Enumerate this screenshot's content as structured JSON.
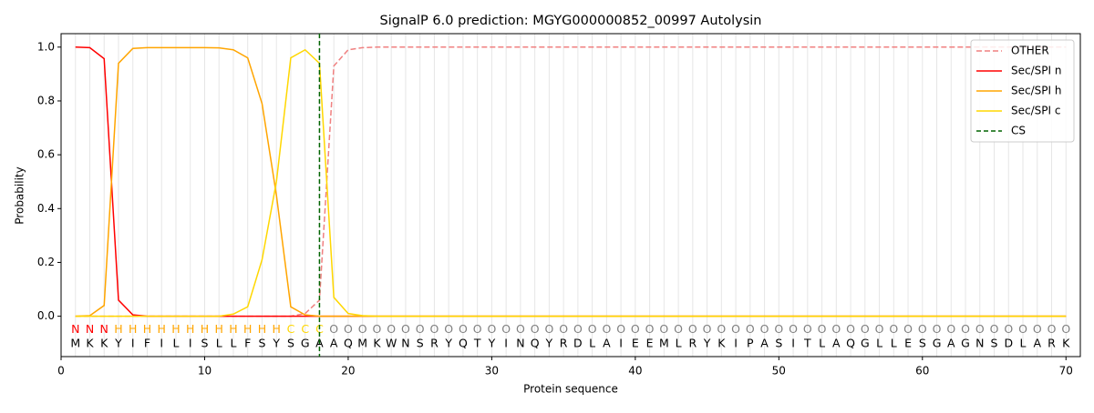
{
  "chart_data": {
    "type": "line",
    "title": "SignalP 6.0 prediction: MGYG000000852_00997 Autolysin",
    "x_label": "Protein sequence",
    "y_label": "Probability",
    "xlim": [
      0,
      71
    ],
    "ylim": [
      -0.15,
      1.05
    ],
    "xticks": [
      0,
      10,
      20,
      30,
      40,
      50,
      60,
      70
    ],
    "yticks": [
      {
        "value": 0,
        "label": "0.0"
      },
      {
        "value": 0.2,
        "label": "0.2"
      },
      {
        "value": 0.4,
        "label": "0.4"
      },
      {
        "value": 0.6,
        "label": "0.6"
      },
      {
        "value": 0.8,
        "label": "0.8"
      },
      {
        "value": 1,
        "label": "1.0"
      }
    ],
    "legend": "upper right",
    "x": [
      1,
      2,
      3,
      4,
      5,
      6,
      7,
      8,
      9,
      10,
      11,
      12,
      13,
      14,
      15,
      16,
      17,
      18,
      19,
      20,
      21,
      22,
      23,
      24,
      25,
      26,
      27,
      28,
      29,
      30,
      31,
      32,
      33,
      34,
      35,
      36,
      37,
      38,
      39,
      40,
      41,
      42,
      43,
      44,
      45,
      46,
      47,
      48,
      49,
      50,
      51,
      52,
      53,
      54,
      55,
      56,
      57,
      58,
      59,
      60,
      61,
      62,
      63,
      64,
      65,
      66,
      67,
      68,
      69,
      70
    ],
    "sequence": [
      "M",
      "K",
      "K",
      "Y",
      "I",
      "F",
      "I",
      "L",
      "I",
      "S",
      "L",
      "L",
      "F",
      "S",
      "Y",
      "S",
      "G",
      "A",
      "A",
      "Q",
      "M",
      "K",
      "W",
      "N",
      "S",
      "R",
      "Y",
      "Q",
      "T",
      "Y",
      "I",
      "N",
      "Q",
      "Y",
      "R",
      "D",
      "L",
      "A",
      "I",
      "E",
      "E",
      "M",
      "L",
      "R",
      "Y",
      "K",
      "I",
      "P",
      "A",
      "S",
      "I",
      "T",
      "L",
      "A",
      "Q",
      "G",
      "L",
      "L",
      "E",
      "S",
      "G",
      "A",
      "G",
      "N",
      "S",
      "D",
      "L",
      "A",
      "R",
      "K"
    ],
    "labels": [
      "N",
      "N",
      "N",
      "H",
      "H",
      "H",
      "H",
      "H",
      "H",
      "H",
      "H",
      "H",
      "H",
      "H",
      "H",
      "C",
      "C",
      "C",
      "O",
      "O",
      "O",
      "O",
      "O",
      "O",
      "O",
      "O",
      "O",
      "O",
      "O",
      "O",
      "O",
      "O",
      "O",
      "O",
      "O",
      "O",
      "O",
      "O",
      "O",
      "O",
      "O",
      "O",
      "O",
      "O",
      "O",
      "O",
      "O",
      "O",
      "O",
      "O",
      "O",
      "O",
      "O",
      "O",
      "O",
      "O",
      "O",
      "O",
      "O",
      "O",
      "O",
      "O",
      "O",
      "O",
      "O",
      "O",
      "O",
      "O",
      "O",
      "O"
    ],
    "label_colors": {
      "N": "#ff0000",
      "H": "#ffa500",
      "C": "#ffd700",
      "O": "#808080"
    },
    "series": [
      {
        "name": "OTHER",
        "color": "#f08080",
        "dashed": true,
        "values": [
          0,
          0,
          0,
          0,
          0,
          0,
          0,
          0,
          0,
          0,
          0,
          0,
          0,
          0,
          0,
          0,
          0.01,
          0.06,
          0.93,
          0.99,
          0.998,
          1,
          1,
          1,
          1,
          1,
          1,
          1,
          1,
          1,
          1,
          1,
          1,
          1,
          1,
          1,
          1,
          1,
          1,
          1,
          1,
          1,
          1,
          1,
          1,
          1,
          1,
          1,
          1,
          1,
          1,
          1,
          1,
          1,
          1,
          1,
          1,
          1,
          1,
          1,
          1,
          1,
          1,
          1,
          1,
          1,
          1,
          1,
          1,
          1
        ]
      },
      {
        "name": "Sec/SPI n",
        "color": "#ff0000",
        "values": [
          1,
          0.998,
          0.957,
          0.06,
          0.005,
          0,
          0,
          0,
          0,
          0,
          0,
          0,
          0,
          0,
          0,
          0,
          0,
          0,
          0,
          0,
          0,
          0,
          0,
          0,
          0,
          0,
          0,
          0,
          0,
          0,
          0,
          0,
          0,
          0,
          0,
          0,
          0,
          0,
          0,
          0,
          0,
          0,
          0,
          0,
          0,
          0,
          0,
          0,
          0,
          0,
          0,
          0,
          0,
          0,
          0,
          0,
          0,
          0,
          0,
          0,
          0,
          0,
          0,
          0,
          0,
          0,
          0,
          0,
          0,
          0
        ]
      },
      {
        "name": "Sec/SPI h",
        "color": "#ffa500",
        "values": [
          0,
          0.002,
          0.04,
          0.94,
          0.995,
          0.998,
          0.998,
          0.998,
          0.998,
          0.998,
          0.997,
          0.99,
          0.96,
          0.79,
          0.45,
          0.035,
          0.005,
          0,
          0,
          0,
          0,
          0,
          0,
          0,
          0,
          0,
          0,
          0,
          0,
          0,
          0,
          0,
          0,
          0,
          0,
          0,
          0,
          0,
          0,
          0,
          0,
          0,
          0,
          0,
          0,
          0,
          0,
          0,
          0,
          0,
          0,
          0,
          0,
          0,
          0,
          0,
          0,
          0,
          0,
          0,
          0,
          0,
          0,
          0,
          0,
          0,
          0,
          0,
          0,
          0
        ]
      },
      {
        "name": "Sec/SPI c",
        "color": "#ffd700",
        "values": [
          0,
          0,
          0,
          0,
          0,
          0,
          0,
          0,
          0,
          0,
          0,
          0.008,
          0.035,
          0.21,
          0.5,
          0.96,
          0.99,
          0.94,
          0.07,
          0.01,
          0.002,
          0,
          0,
          0,
          0,
          0,
          0,
          0,
          0,
          0,
          0,
          0,
          0,
          0,
          0,
          0,
          0,
          0,
          0,
          0,
          0,
          0,
          0,
          0,
          0,
          0,
          0,
          0,
          0,
          0,
          0,
          0,
          0,
          0,
          0,
          0,
          0,
          0,
          0,
          0,
          0,
          0,
          0,
          0,
          0,
          0,
          0,
          0,
          0,
          0
        ]
      }
    ],
    "cs": {
      "name": "CS",
      "color": "#006400",
      "x": 18
    }
  }
}
